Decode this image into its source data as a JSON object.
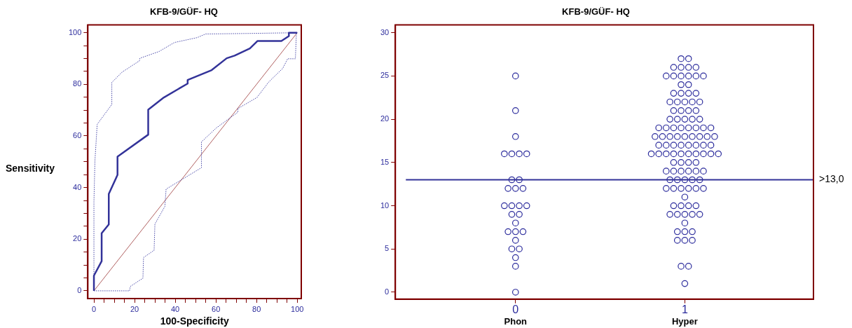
{
  "chart_data": [
    {
      "type": "line",
      "title": "KFB-9/GÜF- HQ",
      "xlabel": "100-Specificity",
      "ylabel": "Sensitivity",
      "xlim": [
        -3,
        102
      ],
      "ylim": [
        -3,
        103
      ],
      "xticks": [
        0,
        {
          "value": 5,
          "label": null
        },
        {
          "value": 10,
          "label": null
        },
        {
          "value": 15,
          "label": null
        },
        20,
        {
          "value": 25,
          "label": null
        },
        {
          "value": 30,
          "label": null
        },
        {
          "value": 35,
          "label": null
        },
        40,
        {
          "value": 45,
          "label": null
        },
        {
          "value": 50,
          "label": null
        },
        {
          "value": 55,
          "label": null
        },
        60,
        {
          "value": 65,
          "label": null
        },
        {
          "value": 70,
          "label": null
        },
        {
          "value": 75,
          "label": null
        },
        80,
        {
          "value": 85,
          "label": null
        },
        {
          "value": 90,
          "label": null
        },
        {
          "value": 95,
          "label": null
        },
        100
      ],
      "yticks": [
        0,
        {
          "value": 5,
          "label": null
        },
        {
          "value": 10,
          "label": null
        },
        {
          "value": 15,
          "label": null
        },
        20,
        {
          "value": 25,
          "label": null
        },
        {
          "value": 30,
          "label": null
        },
        {
          "value": 35,
          "label": null
        },
        40,
        {
          "value": 45,
          "label": null
        },
        {
          "value": 50,
          "label": null
        },
        {
          "value": 55,
          "label": null
        },
        60,
        {
          "value": 65,
          "label": null
        },
        {
          "value": 70,
          "label": null
        },
        {
          "value": 75,
          "label": null
        },
        80,
        {
          "value": 85,
          "label": null
        },
        {
          "value": 90,
          "label": null
        },
        {
          "value": 95,
          "label": null
        },
        100
      ],
      "grid": false,
      "marker": "none",
      "series": [
        {
          "color": "#333399",
          "line_style": "solid",
          "x": [
            0,
            0,
            3.8,
            3.8,
            7.3,
            7.3,
            11.6,
            11.6,
            26.7,
            26.7,
            34.4,
            46.1,
            46.1,
            57.9,
            65.3,
            69.2,
            76.7,
            80.5,
            92.2,
            95.9,
            95.9,
            100
          ],
          "values": [
            0,
            5.9,
            11.5,
            22.3,
            25.7,
            37.5,
            44.9,
            52,
            60.5,
            70.2,
            74.9,
            80.3,
            81.7,
            85.5,
            90.1,
            91.1,
            93.9,
            96.8,
            96.8,
            98.7,
            100,
            100
          ]
        },
        {
          "color": "#4a4aa8",
          "line_style": "dotted",
          "x": [
            0,
            0,
            0.5,
            1.6,
            8.8,
            8.8,
            13.8,
            22.4,
            22.6,
            32,
            39.6,
            50.8,
            54.9,
            75.5,
            100
          ],
          "values": [
            0,
            34.4,
            50.4,
            64.5,
            72.2,
            80.7,
            84.7,
            89.1,
            90.1,
            92.7,
            96.2,
            98.1,
            99.5,
            99.7,
            100
          ]
        },
        {
          "color": "#4a4aa8",
          "line_style": "dotted",
          "x": [
            0,
            17.5,
            17.9,
            24.1,
            24.4,
            29.6,
            30,
            34.9,
            35.5,
            42.6,
            52.9,
            52.9,
            60.2,
            70.8,
            70.8,
            80.2,
            86.1,
            92.9,
            95.3,
            99.1,
            99.6,
            100
          ],
          "values": [
            0,
            0,
            1.7,
            4.9,
            12.9,
            15.7,
            25.9,
            32.7,
            39.4,
            42.8,
            47.7,
            57.7,
            63.1,
            69.2,
            70.6,
            74.9,
            81,
            86.2,
            89.9,
            89.9,
            100,
            100
          ]
        },
        {
          "color": "#b06060",
          "line_style": "solid",
          "x": [
            0,
            100
          ],
          "values": [
            0,
            100
          ]
        }
      ]
    },
    {
      "type": "scatter",
      "title": "KFB-9/GÜF- HQ",
      "xlim": [
        -0.71,
        1.76
      ],
      "xticks": [
        0,
        1
      ],
      "ylim": [
        -0.8,
        30.9
      ],
      "yticks": [
        0,
        5,
        10,
        15,
        20,
        25,
        30
      ],
      "grid": false,
      "marker": "circle",
      "annotations": [
        "Phon",
        "Hyper"
      ],
      "ref_lines": [
        {
          "axis": "y",
          "value": 13,
          "label": ">13,0",
          "color": "#333399"
        }
      ],
      "series": [
        {
          "color": "#2b2b9c",
          "x": [
            0,
            0,
            0,
            -0.066,
            -0.022,
            0.022,
            0.066,
            -0.022,
            0.022,
            -0.044,
            0,
            0.044,
            -0.066,
            -0.022,
            0.022,
            0.066,
            -0.022,
            0.022,
            0,
            -0.044,
            0,
            0.044,
            0,
            -0.022,
            0.022,
            0,
            0,
            0
          ],
          "values": [
            25,
            21,
            18,
            16,
            16,
            16,
            16,
            13,
            13,
            12,
            12,
            12,
            10,
            10,
            10,
            10,
            9,
            9,
            8,
            7,
            7,
            7,
            6,
            5,
            5,
            4,
            3,
            0
          ]
        },
        {
          "color": "#2b2b9c",
          "x": [
            0.978,
            1.022,
            0.934,
            0.978,
            1.022,
            1.066,
            0.89,
            0.934,
            0.978,
            1.022,
            1.066,
            1.11,
            0.978,
            1.022,
            0.934,
            0.978,
            1.022,
            1.066,
            0.912,
            0.956,
            1,
            1.044,
            1.088,
            0.934,
            0.978,
            1.022,
            1.066,
            0.912,
            0.956,
            1,
            1.044,
            1.088,
            0.846,
            0.89,
            0.934,
            0.978,
            1.022,
            1.066,
            1.11,
            1.154,
            0.824,
            0.868,
            0.912,
            0.956,
            1,
            1.044,
            1.088,
            1.132,
            1.176,
            0.846,
            0.89,
            0.934,
            0.978,
            1.022,
            1.066,
            1.11,
            1.154,
            0.802,
            0.846,
            0.89,
            0.934,
            0.978,
            1.022,
            1.066,
            1.11,
            1.154,
            1.198,
            0.934,
            0.978,
            1.022,
            1.066,
            0.89,
            0.934,
            0.978,
            1.022,
            1.066,
            1.11,
            0.912,
            0.956,
            1,
            1.044,
            1.088,
            0.89,
            0.934,
            0.978,
            1.022,
            1.066,
            1.11,
            1,
            0.934,
            0.978,
            1.022,
            1.066,
            0.912,
            0.956,
            1,
            1.044,
            1.088,
            1,
            0.956,
            1,
            1.044,
            0.956,
            1,
            1.044,
            0.978,
            1.022,
            1
          ],
          "values": [
            27,
            27,
            26,
            26,
            26,
            26,
            25,
            25,
            25,
            25,
            25,
            25,
            24,
            24,
            23,
            23,
            23,
            23,
            22,
            22,
            22,
            22,
            22,
            21,
            21,
            21,
            21,
            20,
            20,
            20,
            20,
            20,
            19,
            19,
            19,
            19,
            19,
            19,
            19,
            19,
            18,
            18,
            18,
            18,
            18,
            18,
            18,
            18,
            18,
            17,
            17,
            17,
            17,
            17,
            17,
            17,
            17,
            16,
            16,
            16,
            16,
            16,
            16,
            16,
            16,
            16,
            16,
            15,
            15,
            15,
            15,
            14,
            14,
            14,
            14,
            14,
            14,
            13,
            13,
            13,
            13,
            13,
            12,
            12,
            12,
            12,
            12,
            12,
            11,
            10,
            10,
            10,
            10,
            9,
            9,
            9,
            9,
            9,
            8,
            7,
            7,
            7,
            6,
            6,
            6,
            3,
            3,
            1
          ]
        }
      ]
    }
  ]
}
